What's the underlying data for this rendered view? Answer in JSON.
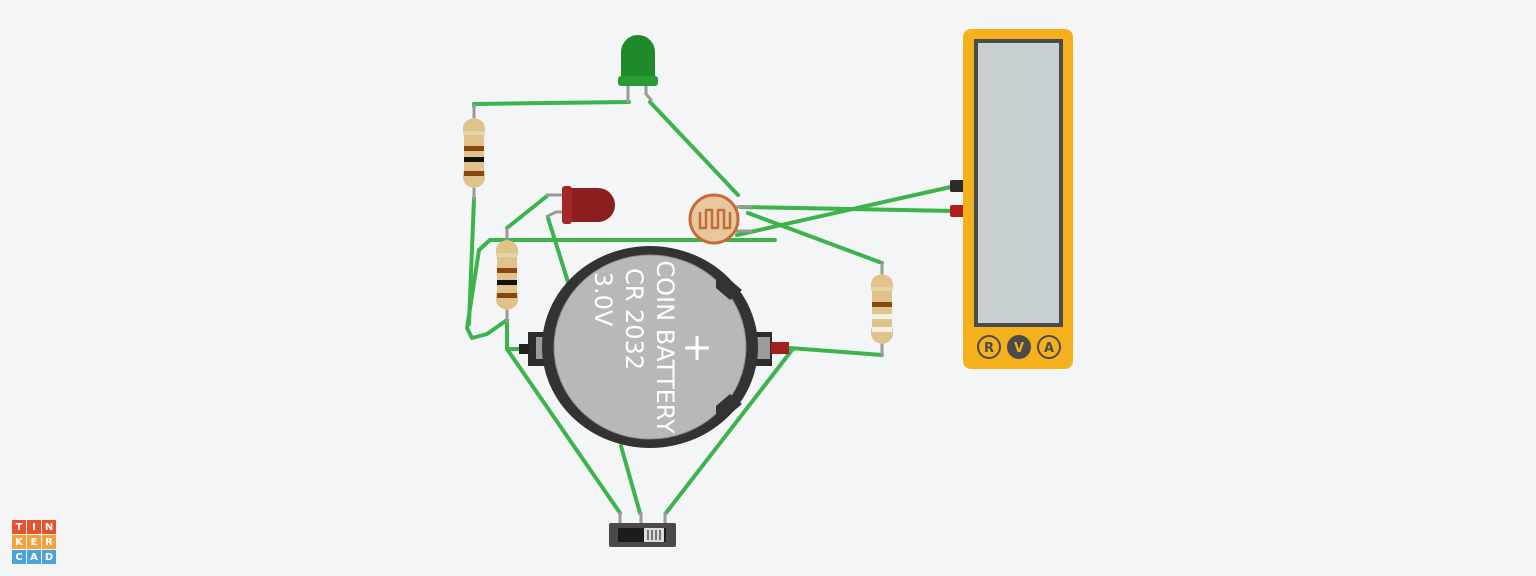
{
  "battery": {
    "line1": "COIN BATTERY",
    "line2": "CR 2032",
    "line3": "3.0V",
    "plus": "+"
  },
  "multimeter": {
    "modes": [
      {
        "letter": "R",
        "name": "resistance"
      },
      {
        "letter": "V",
        "name": "voltage",
        "selected": true
      },
      {
        "letter": "A",
        "name": "current"
      }
    ]
  },
  "logo": {
    "letters": [
      "T",
      "I",
      "N",
      "K",
      "E",
      "R",
      "C",
      "A",
      "D"
    ],
    "colors": [
      "#e8532f",
      "#e8532f",
      "#e8532f",
      "#f2a33a",
      "#f2a33a",
      "#f2a33a",
      "#4da3d8",
      "#4da3d8",
      "#4da3d8"
    ]
  },
  "colors": {
    "background": "#f3f5f7",
    "wire": "#3cb44b",
    "led_green": "#1f8a2a",
    "led_red": "#8b1f1f",
    "multimeter_body": "#f4b11c",
    "multimeter_screen": "#c7cfd2",
    "resistor_body": "#e0c28b",
    "battery_holder": "#333333",
    "battery_cell": "#b8b8b8"
  }
}
